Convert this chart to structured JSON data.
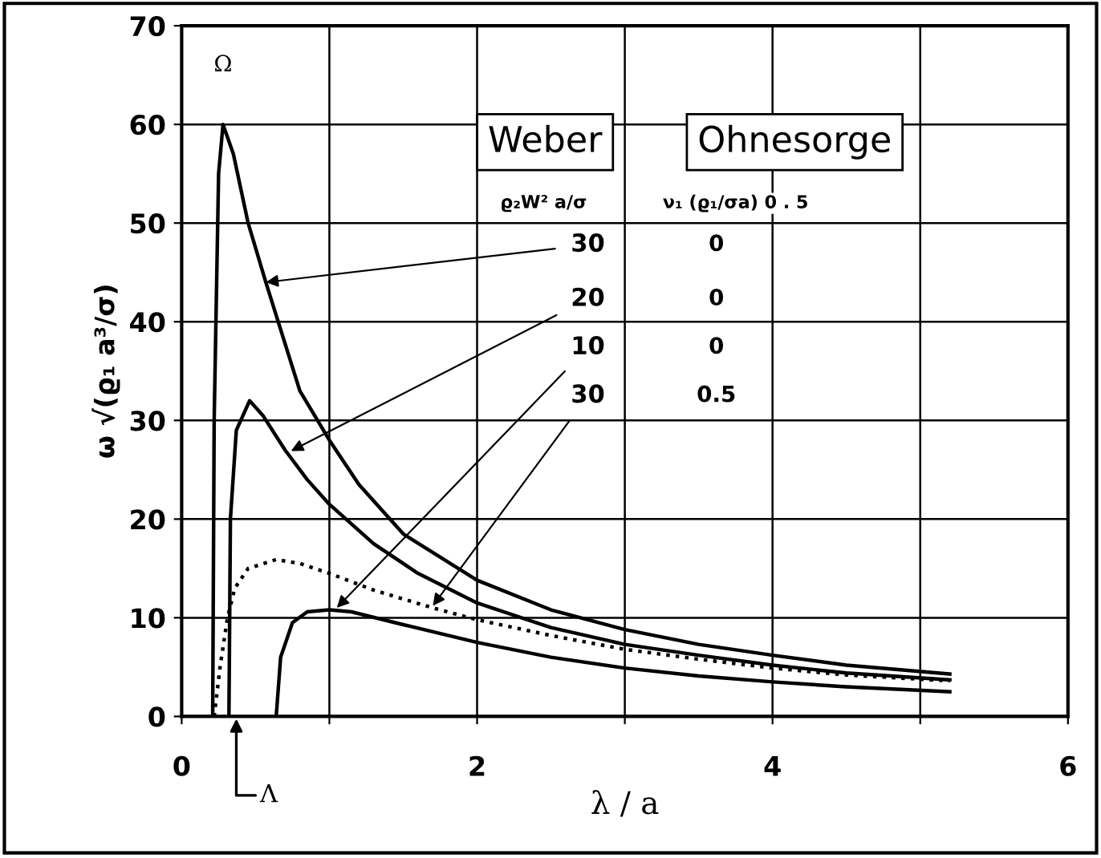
{
  "chart_data": {
    "type": "line",
    "xlabel": "λ / a",
    "ylabel": "ω √(ϱ₁ a³/σ)",
    "xlim": [
      0,
      6
    ],
    "ylim": [
      0,
      70
    ],
    "xticks": [
      0,
      {
        "value": 1,
        "label": null
      },
      2,
      {
        "value": 3,
        "label": null
      },
      4,
      {
        "value": 5,
        "label": null
      },
      6
    ],
    "yticks": [
      0,
      10,
      20,
      30,
      40,
      50,
      60,
      70
    ],
    "grid": true,
    "line_style": "solid",
    "series": [
      {
        "color": "#000000",
        "x": [
          0.21,
          0.22,
          0.25,
          0.28,
          0.35,
          0.45,
          0.57,
          0.8,
          1.0,
          1.2,
          1.5,
          2.0,
          2.5,
          3.0,
          3.5,
          4.0,
          4.5,
          5.2
        ],
        "values": [
          0,
          30,
          55,
          60,
          57,
          50,
          44,
          33,
          28,
          23.5,
          18.5,
          13.8,
          10.8,
          8.8,
          7.3,
          6.2,
          5.2,
          4.3
        ]
      },
      {
        "color": "#000000",
        "x": [
          0.32,
          0.33,
          0.37,
          0.46,
          0.55,
          0.7,
          0.85,
          1.0,
          1.3,
          1.6,
          2.0,
          2.5,
          3.0,
          3.5,
          4.0,
          4.5,
          5.2
        ],
        "values": [
          0,
          20,
          29,
          32,
          30.5,
          27,
          24,
          21.5,
          17.5,
          14.5,
          11.5,
          9,
          7.3,
          6.2,
          5.2,
          4.4,
          3.7
        ]
      },
      {
        "color": "#000000",
        "x": [
          0.64,
          0.67,
          0.75,
          0.85,
          1.0,
          1.15,
          1.5,
          2.0,
          2.5,
          3.0,
          3.5,
          4.0,
          4.5,
          5.2
        ],
        "values": [
          0,
          6,
          9.5,
          10.6,
          10.8,
          10.6,
          9.3,
          7.5,
          6.0,
          4.9,
          4.1,
          3.5,
          3.0,
          2.5
        ]
      },
      {
        "color": "#000000",
        "line_style": "dotted",
        "x": [
          0.22,
          0.26,
          0.31,
          0.36,
          0.45,
          0.64,
          0.8,
          1.0,
          1.3,
          1.7,
          2.0,
          2.5,
          3.0,
          3.5,
          4.0,
          4.5,
          5.2
        ],
        "values": [
          0,
          5,
          10,
          13,
          15,
          15.9,
          15.5,
          14.5,
          12.8,
          11,
          9.8,
          8.2,
          6.8,
          5.8,
          4.9,
          4.2,
          3.6
        ]
      }
    ],
    "annotations": [
      "Weber",
      "Ohnesorge",
      "ϱ₂W² a/σ",
      "ν₁ (ϱ₁/σa) 0 . 5",
      "0",
      "0",
      "0",
      "0.5",
      {
        "text": "30",
        "x": 0.57,
        "y": 44
      },
      {
        "text": "20",
        "x": 0.74,
        "y": 26.9
      },
      {
        "text": "10",
        "x": 1.05,
        "y": 11
      },
      {
        "text": "30",
        "x": 1.7,
        "y": 11.2
      },
      {
        "text": "Ω",
        "x": 0.28,
        "y": 60
      },
      {
        "text": "Λ",
        "x": 0.37,
        "y": 0
      }
    ]
  }
}
